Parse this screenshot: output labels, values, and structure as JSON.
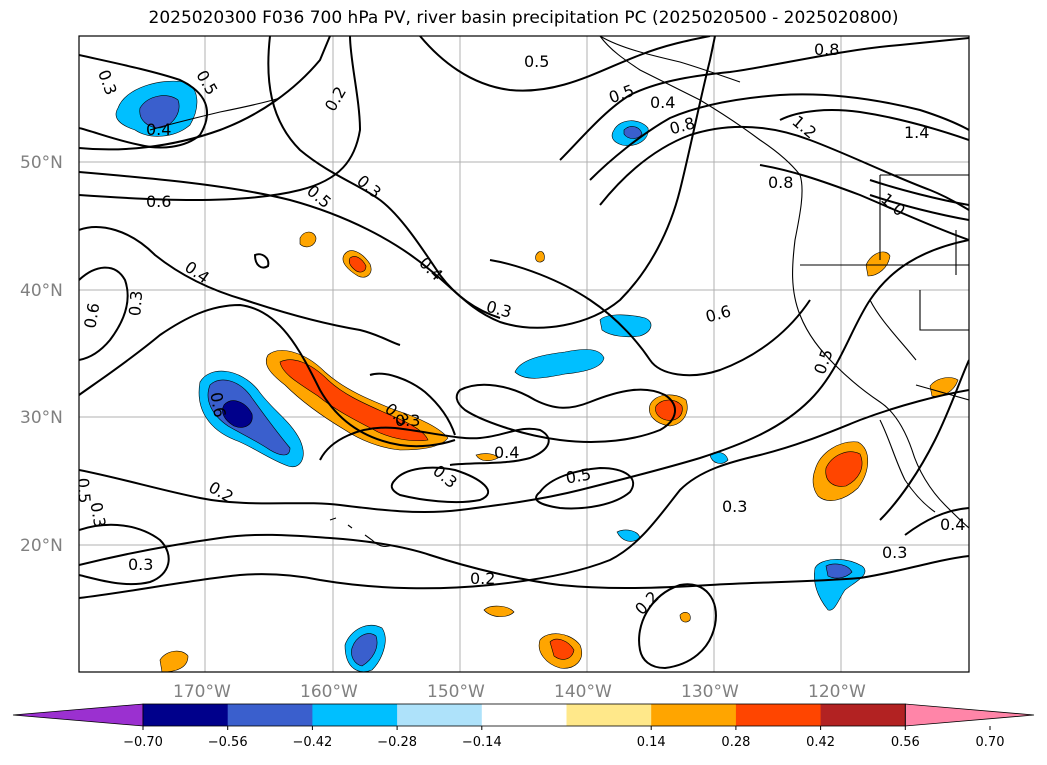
{
  "title": "2025020300 F036 700 hPa PV, river basin precipitation PC (2025020500 - 2025020800)",
  "axes": {
    "lat_labels": [
      "50°N",
      "40°N",
      "30°N",
      "20°N"
    ],
    "lon_labels": [
      "170°W",
      "160°W",
      "150°W",
      "140°W",
      "130°W",
      "120°W"
    ]
  },
  "contour_labels": [
    "0.3",
    "0.5",
    "0.4",
    "0.2",
    "0.5",
    "0.8",
    "0.5",
    "0.4",
    "0.8",
    "1.2",
    "1.4",
    "0.6",
    "0.3",
    "0.5",
    "0.3",
    "0.6",
    "0.4",
    "0.4",
    "0.3",
    "1.0",
    "0.8",
    "0.6",
    "0.5",
    "0.6",
    "0.3",
    "0.4",
    "0.3",
    "0.5",
    "0.5",
    "0.3",
    "0.2",
    "0.3",
    "0.3",
    "0.4",
    "0.3",
    "0.2",
    "0.3",
    "0.2"
  ],
  "colorbar": {
    "ticks": [
      "−0.70",
      "−0.56",
      "−0.42",
      "−0.28",
      "−0.14",
      "0.14",
      "0.28",
      "0.42",
      "0.56",
      "0.70"
    ],
    "colors": [
      "#9b30d0",
      "#00008b",
      "#3a5fcd",
      "#00bfff",
      "#aee2fa",
      "#ffffff",
      "#ffe88a",
      "#ffa500",
      "#ff4500",
      "#b22222",
      "#ff85a8"
    ]
  }
}
